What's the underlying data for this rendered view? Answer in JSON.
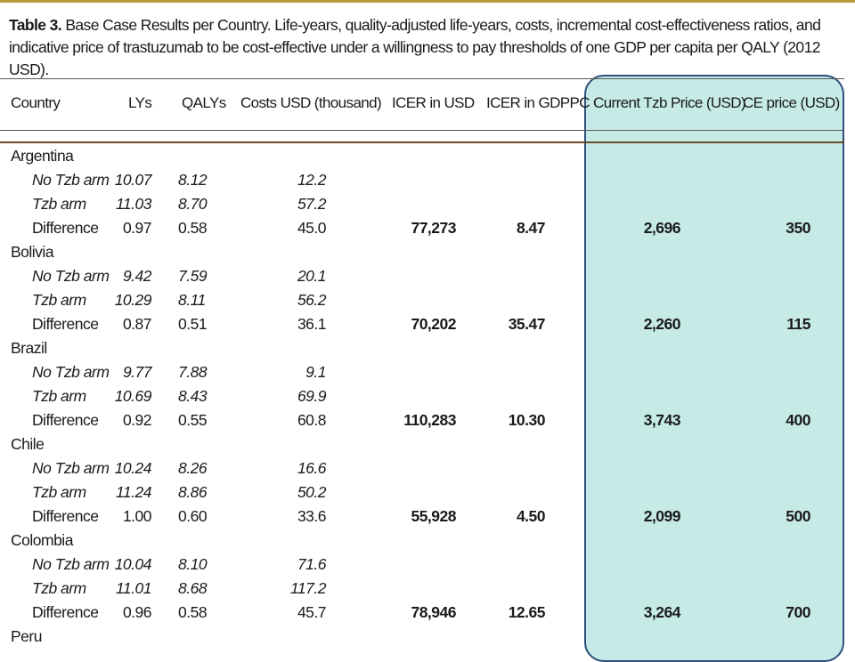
{
  "caption": {
    "label": "Table 3.",
    "text": "Base Case Results per Country. Life-years, quality-adjusted life-years, costs, incremental cost-effectiveness ratios, and indicative price of trastuzumab to be cost-effective under a willingness to pay thresholds of one GDP per capita per QALY (2012 USD)."
  },
  "headers": {
    "country": "Country",
    "lys": "LYs",
    "qalys": "QALYs",
    "costs": "Costs USD (thousand)",
    "icer_usd": "ICER in USD",
    "icer_gdppc": "ICER in GDPPC",
    "current_price": "Current Tzb Price (USD)",
    "ce_price": "CE price (USD)"
  },
  "countries": [
    {
      "name": "Argentina",
      "no_tzb": {
        "label": "No Tzb arm",
        "lys": "10.07",
        "qalys": "8.12",
        "costs": "12.2"
      },
      "tzb": {
        "label": "Tzb arm",
        "lys": "11.03",
        "qalys": "8.70",
        "costs": "57.2"
      },
      "diff": {
        "label": "Difference",
        "lys": "0.97",
        "qalys": "0.58",
        "costs": "45.0",
        "icer_usd": "77,273",
        "icer_gdppc": "8.47",
        "current_price": "2,696",
        "ce_price": "350"
      }
    },
    {
      "name": "Bolivia",
      "no_tzb": {
        "label": "No Tzb arm",
        "lys": "9.42",
        "qalys": "7.59",
        "costs": "20.1"
      },
      "tzb": {
        "label": "Tzb arm",
        "lys": "10.29",
        "qalys": "8.11",
        "costs": "56.2"
      },
      "diff": {
        "label": "Difference",
        "lys": "0.87",
        "qalys": "0.51",
        "costs": "36.1",
        "icer_usd": "70,202",
        "icer_gdppc": "35.47",
        "current_price": "2,260",
        "ce_price": "115"
      }
    },
    {
      "name": "Brazil",
      "no_tzb": {
        "label": "No Tzb arm",
        "lys": "9.77",
        "qalys": "7.88",
        "costs": "9.1"
      },
      "tzb": {
        "label": "Tzb arm",
        "lys": "10.69",
        "qalys": "8.43",
        "costs": "69.9"
      },
      "diff": {
        "label": "Difference",
        "lys": "0.92",
        "qalys": "0.55",
        "costs": "60.8",
        "icer_usd": "110,283",
        "icer_gdppc": "10.30",
        "current_price": "3,743",
        "ce_price": "400"
      }
    },
    {
      "name": "Chile",
      "no_tzb": {
        "label": "No Tzb arm",
        "lys": "10.24",
        "qalys": "8.26",
        "costs": "16.6"
      },
      "tzb": {
        "label": "Tzb arm",
        "lys": "11.24",
        "qalys": "8.86",
        "costs": "50.2"
      },
      "diff": {
        "label": "Difference",
        "lys": "1.00",
        "qalys": "0.60",
        "costs": "33.6",
        "icer_usd": "55,928",
        "icer_gdppc": "4.50",
        "current_price": "2,099",
        "ce_price": "500"
      }
    },
    {
      "name": "Colombia",
      "no_tzb": {
        "label": "No Tzb arm",
        "lys": "10.04",
        "qalys": "8.10",
        "costs": "71.6"
      },
      "tzb": {
        "label": "Tzb arm",
        "lys": "11.01",
        "qalys": "8.68",
        "costs": "117.2"
      },
      "diff": {
        "label": "Difference",
        "lys": "0.96",
        "qalys": "0.58",
        "costs": "45.7",
        "icer_usd": "78,946",
        "icer_gdppc": "12.65",
        "current_price": "3,264",
        "ce_price": "700"
      }
    }
  ],
  "last_country": "Peru"
}
